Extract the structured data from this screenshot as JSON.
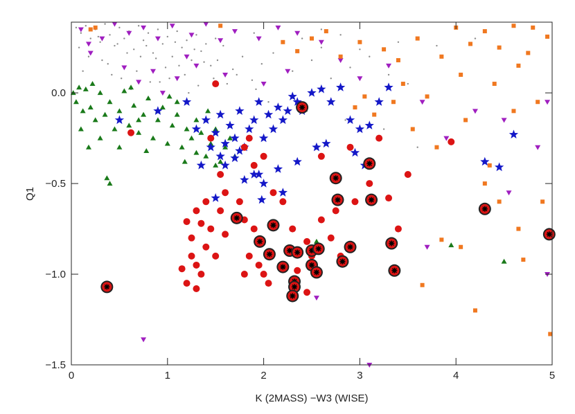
{
  "chart_data": {
    "type": "scatter",
    "x_label": "K (2MASS) −W3 (WISE)",
    "y_label": "Q1",
    "xlim": [
      0,
      5
    ],
    "ylim": [
      -1.5,
      0.39
    ],
    "xticks": [
      0,
      1,
      2,
      3,
      4,
      5
    ],
    "yticks": [
      {
        "value": 0,
        "label": "0.0"
      },
      {
        "value": -0.5,
        "label": "−0.5"
      },
      {
        "value": -1,
        "label": "−1.0"
      },
      {
        "value": -1.5,
        "label": "−1.5"
      }
    ],
    "series": [
      {
        "marker": "dot",
        "color": "#8c8c8c",
        "x": [
          0.05,
          0.1,
          0.15,
          0.2,
          0.25,
          0.3,
          0.35,
          0.4,
          0.45,
          0.5,
          0.55,
          0.6,
          0.65,
          0.7,
          0.75,
          0.8,
          0.85,
          0.9,
          0.95,
          1.0,
          1.05,
          1.1,
          1.15,
          1.2,
          1.25,
          1.3,
          1.35,
          1.4,
          1.45,
          1.5,
          0.08,
          0.18,
          0.28,
          0.38,
          0.48,
          0.58,
          0.68,
          0.78,
          0.88,
          0.98,
          1.08,
          1.18,
          1.28,
          1.38,
          1.48,
          1.58,
          1.68,
          1.78,
          1.88,
          1.98,
          2.1,
          2.3,
          2.5,
          2.7,
          2.9,
          3.1,
          3.3,
          3.5,
          0.12,
          0.32,
          0.52,
          0.72,
          0.92,
          1.12,
          1.32,
          1.52,
          1.72,
          1.92,
          2.2,
          2.4,
          2.6,
          2.8,
          3.0,
          3.4,
          3.8,
          4.2,
          0.22,
          0.42,
          0.62,
          0.82,
          1.02,
          1.22,
          1.62,
          2.05,
          2.45,
          2.85,
          3.25,
          3.6,
          1.9,
          2.6
        ],
        "y": [
          0.36,
          0.33,
          0.37,
          0.3,
          0.35,
          0.28,
          0.38,
          0.32,
          0.26,
          0.36,
          0.3,
          0.34,
          0.24,
          0.37,
          0.29,
          0.33,
          0.22,
          0.35,
          0.27,
          0.31,
          0.2,
          0.34,
          0.25,
          0.29,
          0.18,
          0.32,
          0.23,
          0.27,
          0.15,
          0.3,
          0.25,
          0.2,
          0.31,
          0.16,
          0.27,
          0.22,
          0.12,
          0.26,
          0.19,
          0.14,
          0.28,
          0.1,
          0.24,
          0.17,
          0.08,
          0.26,
          0.13,
          0.2,
          0.07,
          0.16,
          0.22,
          0.12,
          0.18,
          0.08,
          0.14,
          0.2,
          0.1,
          0.05,
          0.12,
          0.18,
          0.08,
          0.2,
          0.06,
          0.15,
          0.04,
          0.18,
          0.1,
          0.02,
          0.28,
          0.3,
          0.25,
          0.32,
          0.24,
          0.28,
          0.26,
          0.3,
          0.05,
          0.1,
          0.02,
          0.06,
          0.08,
          0.0,
          0.05,
          -0.05,
          -0.1,
          -0.15,
          -0.2,
          -0.3,
          0.33,
          0.35
        ]
      },
      {
        "marker": "triangle-down",
        "color": "#a01fc0",
        "x": [
          0.1,
          0.18,
          0.32,
          0.45,
          0.6,
          0.75,
          0.9,
          1.05,
          1.25,
          1.4,
          1.55,
          1.7,
          1.95,
          2.15,
          2.35,
          2.6,
          0.55,
          0.85,
          1.1,
          1.3,
          0.7,
          0.95,
          1.6,
          2.0,
          2.25,
          2.8,
          3.0,
          3.3,
          3.65,
          3.9,
          4.2,
          4.5,
          4.85,
          4.95,
          0.75,
          2.55,
          3.1,
          4.95,
          3.7,
          4.55,
          1.2,
          0.2
        ],
        "y": [
          0.35,
          0.27,
          0.3,
          0.38,
          0.33,
          0.36,
          0.3,
          0.37,
          0.32,
          0.38,
          0.29,
          0.34,
          0.3,
          0.36,
          0.33,
          0.28,
          0.14,
          0.12,
          0.08,
          0.15,
          0.06,
          0.0,
          0.1,
          0.05,
          0.12,
          0.18,
          0.08,
          0.15,
          -0.05,
          -0.25,
          -0.1,
          -0.15,
          -0.3,
          -0.05,
          -1.36,
          -1.13,
          -1.5,
          -1.0,
          -0.85,
          -0.55,
          0.2,
          0.22
        ],
        "note_free": null
      },
      {
        "marker": "square",
        "color": "#f07820",
        "x": [
          0.2,
          0.25,
          1.55,
          2.2,
          2.35,
          2.5,
          2.65,
          2.8,
          3.0,
          3.25,
          3.4,
          3.6,
          3.85,
          4.0,
          4.15,
          4.3,
          4.45,
          4.6,
          4.75,
          4.8,
          4.95,
          3.45,
          3.7,
          4.05,
          4.4,
          4.65,
          4.85,
          2.95,
          3.15,
          3.35,
          3.55,
          3.8,
          4.1,
          4.35,
          4.6,
          4.9,
          3.65,
          4.05,
          4.2,
          4.45,
          4.65,
          3.85,
          4.7,
          4.98,
          4.3,
          3.05
        ],
        "y": [
          0.35,
          0.36,
          0.37,
          0.28,
          0.23,
          0.3,
          0.34,
          0.2,
          0.28,
          0.24,
          0.18,
          0.3,
          0.2,
          0.36,
          0.27,
          0.34,
          0.25,
          0.37,
          0.22,
          0.36,
          0.31,
          0.05,
          -0.02,
          0.1,
          0.05,
          0.15,
          -0.05,
          -0.08,
          -0.12,
          -0.05,
          -0.2,
          -0.3,
          -0.15,
          -0.4,
          -0.1,
          -0.6,
          -1.06,
          -0.85,
          -1.2,
          -0.6,
          -0.75,
          -0.81,
          -0.92,
          -1.33,
          -0.5,
          -0.02
        ]
      },
      {
        "marker": "triangle-up",
        "color": "#1a7a1a",
        "x": [
          0.02,
          0.05,
          0.08,
          0.12,
          0.15,
          0.2,
          0.25,
          0.3,
          0.35,
          0.4,
          0.45,
          0.5,
          0.55,
          0.6,
          0.65,
          0.7,
          0.75,
          0.8,
          0.85,
          0.9,
          0.95,
          1.0,
          1.05,
          1.1,
          1.15,
          1.2,
          1.25,
          1.3,
          1.35,
          1.4,
          1.45,
          1.5,
          1.55,
          1.6,
          1.65,
          1.7,
          0.1,
          0.3,
          0.5,
          0.7,
          0.9,
          1.1,
          1.3,
          1.5,
          0.22,
          0.62,
          1.02,
          1.42,
          0.37,
          0.4,
          2.55,
          3.95,
          4.5,
          0.18,
          0.78,
          1.18
        ],
        "y": [
          0.0,
          -0.05,
          0.03,
          -0.1,
          0.02,
          -0.08,
          -0.15,
          0.0,
          -0.12,
          -0.05,
          -0.2,
          -0.1,
          0.01,
          -0.18,
          -0.07,
          -0.22,
          -0.12,
          -0.03,
          -0.25,
          -0.15,
          -0.08,
          -0.28,
          -0.18,
          -0.12,
          -0.3,
          -0.2,
          -0.25,
          -0.33,
          -0.22,
          -0.35,
          -0.28,
          -0.2,
          -0.38,
          -0.3,
          -0.25,
          -0.35,
          -0.2,
          -0.25,
          -0.3,
          -0.15,
          -0.1,
          -0.05,
          -0.15,
          -0.4,
          0.05,
          0.03,
          -0.02,
          -0.1,
          -0.47,
          -0.5,
          -0.82,
          -0.84,
          -0.93,
          -0.3,
          -0.32,
          -0.38
        ]
      },
      {
        "marker": "star",
        "color": "#1418c8",
        "x": [
          0.5,
          0.9,
          1.2,
          1.3,
          1.4,
          1.45,
          1.5,
          1.55,
          1.6,
          1.65,
          1.7,
          1.75,
          1.8,
          1.85,
          1.9,
          1.95,
          2.0,
          2.05,
          2.1,
          2.15,
          2.2,
          2.25,
          2.3,
          2.35,
          2.4,
          2.5,
          2.6,
          2.7,
          2.8,
          2.9,
          3.0,
          3.1,
          3.2,
          3.3,
          1.35,
          1.55,
          1.75,
          1.95,
          2.15,
          2.35,
          2.55,
          1.6,
          1.8,
          2.0,
          1.5,
          1.7,
          1.9,
          2.65,
          2.95,
          3.05,
          4.6,
          4.3,
          4.45,
          2.2,
          1.98
        ],
        "y": [
          -0.15,
          -0.1,
          -0.05,
          -0.2,
          -0.15,
          -0.3,
          -0.22,
          -0.12,
          -0.28,
          -0.18,
          -0.25,
          -0.1,
          -0.3,
          -0.2,
          -0.15,
          -0.05,
          -0.25,
          -0.12,
          -0.2,
          -0.08,
          -0.15,
          -0.1,
          -0.02,
          -0.05,
          -0.1,
          0.0,
          0.02,
          -0.05,
          0.03,
          -0.15,
          -0.2,
          -0.18,
          -0.05,
          0.03,
          -0.4,
          -0.35,
          -0.32,
          -0.45,
          -0.42,
          -0.38,
          -0.3,
          -0.4,
          -0.48,
          -0.5,
          -0.58,
          -0.36,
          -0.45,
          -0.28,
          -0.33,
          -0.4,
          -0.23,
          -0.38,
          -0.41,
          -0.55,
          -0.59
        ]
      },
      {
        "marker": "circle",
        "color": "#dc1414",
        "x": [
          0.62,
          1.45,
          1.55,
          1.6,
          1.4,
          1.3,
          1.55,
          1.2,
          1.35,
          1.45,
          1.25,
          1.6,
          1.4,
          1.5,
          1.25,
          1.3,
          1.15,
          1.35,
          1.2,
          1.3,
          1.75,
          1.8,
          1.9,
          1.85,
          1.95,
          2.0,
          1.8,
          2.05,
          2.1,
          2.2,
          2.3,
          2.45,
          2.5,
          2.35,
          2.3,
          2.45,
          2.6,
          2.7,
          2.8,
          2.95,
          3.1,
          3.3,
          3.4,
          3.5,
          3.2,
          2.9,
          2.6,
          3.95,
          1.9,
          2.0,
          1.8,
          1.85,
          1.5,
          2.75
        ],
        "y": [
          -0.22,
          -0.25,
          -0.45,
          -0.55,
          -0.6,
          -0.65,
          -0.65,
          -0.71,
          -0.72,
          -0.75,
          -0.8,
          -0.78,
          -0.85,
          -0.9,
          -0.9,
          -0.95,
          -0.97,
          -1.0,
          -1.05,
          -1.08,
          -0.6,
          -0.7,
          -0.75,
          -0.9,
          -0.95,
          -1.0,
          -1.0,
          -1.05,
          -0.55,
          -0.6,
          -0.75,
          -0.82,
          -0.9,
          -0.98,
          -1.08,
          -1.1,
          -0.7,
          -0.8,
          -0.9,
          -0.6,
          -0.5,
          -0.58,
          -0.75,
          -0.45,
          -0.25,
          -0.3,
          -0.35,
          -0.27,
          -0.4,
          -0.35,
          -0.3,
          -0.25,
          0.05,
          -0.65
        ]
      },
      {
        "marker": "circle-star",
        "color": "#dc1414",
        "x": [
          0.37,
          1.72,
          1.96,
          2.1,
          2.4,
          2.75,
          2.77,
          3.1,
          3.12,
          4.3,
          4.97,
          2.06,
          2.2,
          2.27,
          2.35,
          2.5,
          2.5,
          2.57,
          2.55,
          2.32,
          2.32,
          2.3,
          2.82,
          2.9,
          3.33,
          3.36
        ],
        "y": [
          -1.07,
          -0.69,
          -0.82,
          -0.73,
          -0.08,
          -0.47,
          -0.59,
          -0.39,
          -0.59,
          -0.64,
          -0.78,
          -0.89,
          -0.96,
          -0.87,
          -0.88,
          -0.95,
          -0.87,
          -0.86,
          -0.99,
          -1.04,
          -1.07,
          -1.12,
          -0.93,
          -0.85,
          -0.83,
          -0.98
        ]
      }
    ]
  }
}
